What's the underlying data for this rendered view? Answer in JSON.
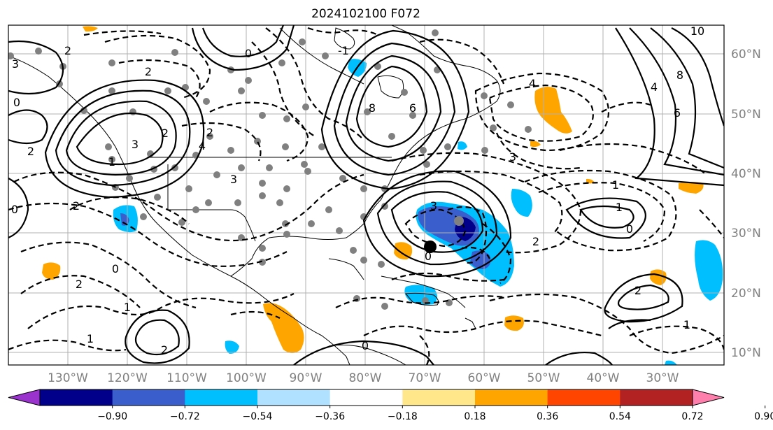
{
  "title": "2024102100 F072",
  "map": {
    "lon_labels": [
      "130°W",
      "120°W",
      "110°W",
      "100°W",
      "90°W",
      "80°W",
      "70°W",
      "60°W",
      "50°W",
      "40°W",
      "30°W"
    ],
    "lat_labels": [
      "60°N",
      "50°N",
      "40°N",
      "30°N",
      "20°N",
      "10°N"
    ],
    "contour_labels": [
      "3",
      "2",
      "0",
      "2",
      "1",
      "3",
      "2",
      "2",
      "0",
      "-1",
      "2",
      "4",
      "8",
      "6",
      "3",
      "4",
      "3",
      "1",
      "0",
      "1",
      "2",
      "0",
      "2",
      "1",
      "2",
      "0",
      "1",
      "0",
      "2",
      "3",
      "6",
      "10",
      "8",
      "4",
      "2",
      "1",
      "0"
    ],
    "low_center_marker": "black-dot",
    "station_markers": "grey-dots",
    "colors": {
      "positive_contour": "#000000",
      "negative_contour": "#000000",
      "grid": "#b0b0b0",
      "coast": "#000000"
    }
  },
  "colorbar": {
    "tick_labels": [
      "−0.90",
      "−0.72",
      "−0.54",
      "−0.36",
      "−0.18",
      "0.18",
      "0.36",
      "0.54",
      "0.72",
      "0.90"
    ],
    "colors": [
      "#9a32cd",
      "#00008b",
      "#3a5fcd",
      "#00bfff",
      "#b0e2ff",
      "#ffffff",
      "#ffe78a",
      "#ffa500",
      "#ff4500",
      "#b22222",
      "#ff7fac"
    ]
  }
}
